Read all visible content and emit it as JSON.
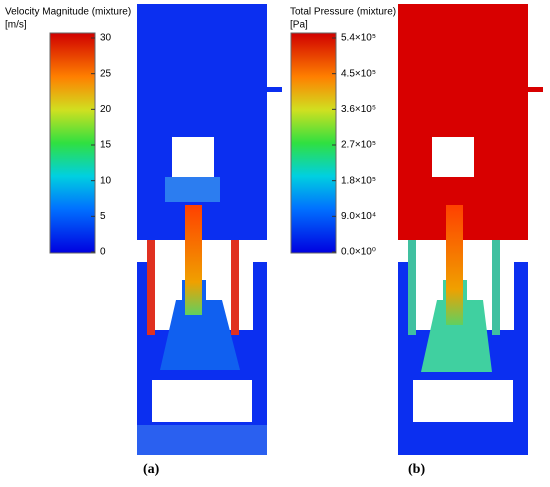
{
  "panels": [
    {
      "title": "Velocity Magnitude (mixture)",
      "unit": "[m/s]",
      "ticks": [
        "30",
        "25",
        "20",
        "15",
        "10",
        "5",
        "0"
      ],
      "caption": "(a)"
    },
    {
      "title": "Total Pressure (mixture)",
      "unit": "[Pa]",
      "ticks": [
        "5.4×10⁵",
        "4.5×10⁵",
        "3.6×10⁵",
        "2.7×10⁵",
        "1.8×10⁵",
        "9.0×10⁴",
        "0.0×10⁰"
      ],
      "caption": "(b)"
    }
  ]
}
